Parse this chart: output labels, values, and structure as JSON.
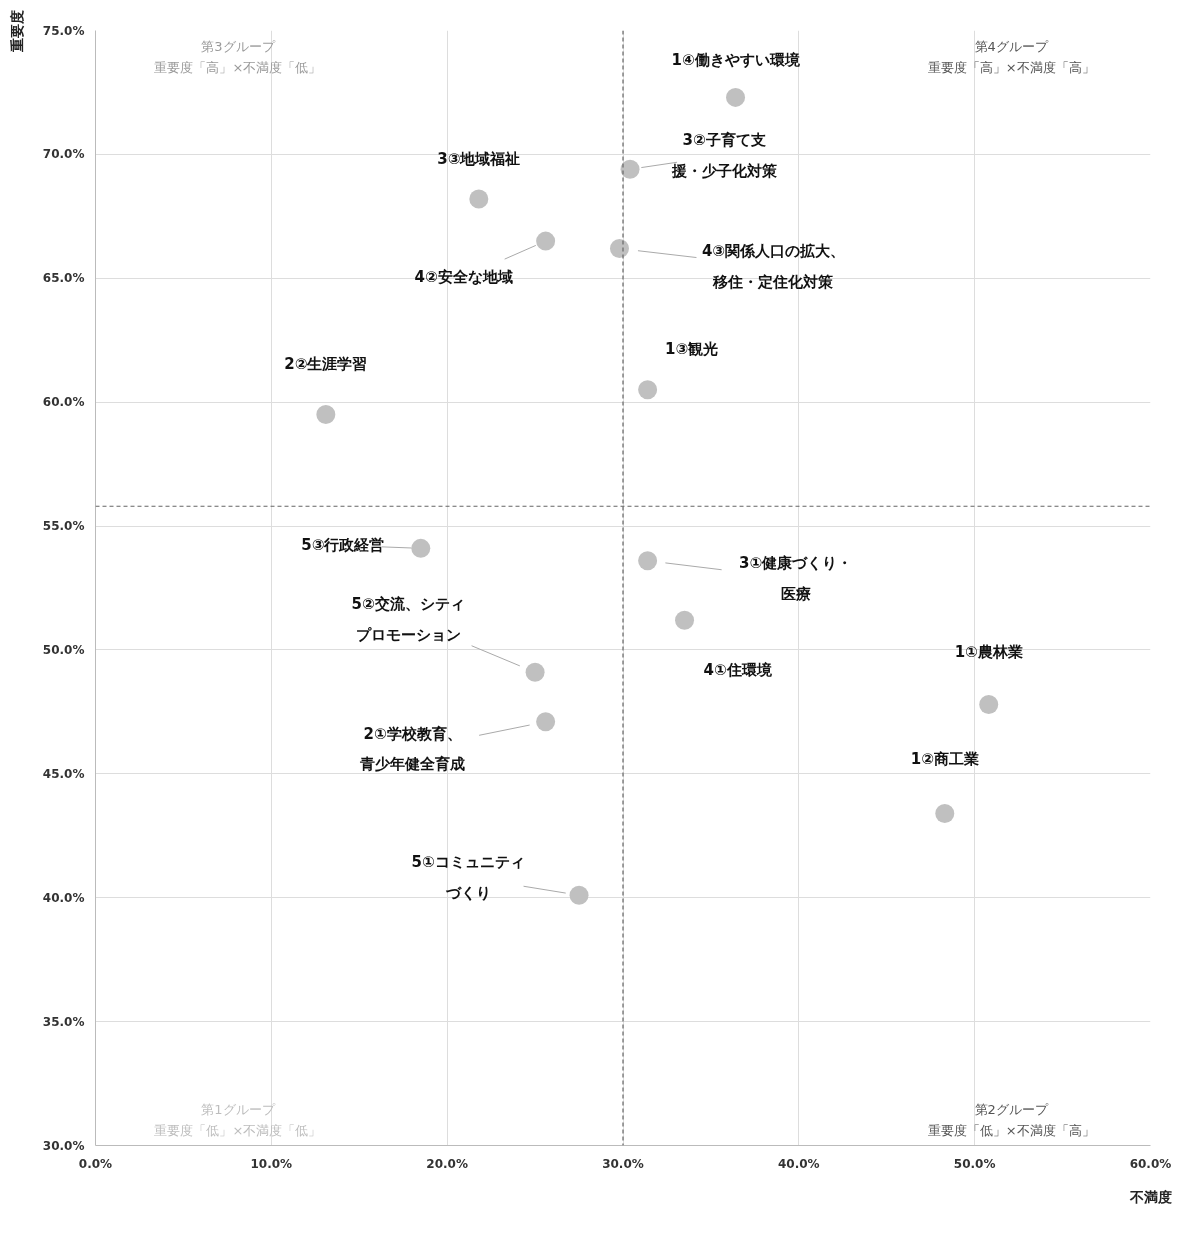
{
  "chart_data": {
    "type": "scatter",
    "xlabel": "不満度",
    "ylabel": "重要度",
    "x": [
      36.4,
      30.4,
      21.8,
      25.6,
      29.8,
      31.4,
      13.1,
      18.5,
      31.4,
      33.5,
      25.0,
      25.6,
      50.8,
      48.3,
      27.5
    ],
    "series": [
      {
        "color": "#c0c0c0",
        "values": [
          72.3,
          69.4,
          68.2,
          66.5,
          66.2,
          60.5,
          59.5,
          54.1,
          53.6,
          51.2,
          49.1,
          47.1,
          47.8,
          43.4,
          40.1
        ]
      }
    ],
    "value_labels": [
      "1④働きやすい環境",
      "3②子育て支援・少子化対策",
      "3③地域福祉",
      "4②安全な地域",
      "4③関係人口の拡大、移住・定住化対策",
      "1③観光",
      "2②生涯学習",
      "5③行政経営",
      "3①健康づくり・医療",
      "4①住環境",
      "5②交流、シティプロモーション",
      "2①学校教育、青少年健全育成",
      "1①農林業",
      "1②商工業",
      "5①コミュニティづくり"
    ],
    "annotations": [
      "第3グループ重要度「高」×不満度「低」",
      "第4グループ重要度「高」×不満度「高」",
      "第1グループ重要度「低」×不満度「低」",
      "第2グループ重要度「低」×不満度「高」"
    ],
    "xlim": [
      0,
      60
    ],
    "xticks": [
      {
        "value": 0,
        "label": "0.0%"
      },
      {
        "value": 10,
        "label": "10.0%"
      },
      {
        "value": 20,
        "label": "20.0%"
      },
      {
        "value": 30,
        "label": "30.0%"
      },
      {
        "value": 40,
        "label": "40.0%"
      },
      {
        "value": 50,
        "label": "50.0%"
      },
      {
        "value": 60,
        "label": "60.0%"
      }
    ],
    "ylim": [
      30,
      75
    ],
    "yticks": [
      {
        "value": 30,
        "label": "30.0%"
      },
      {
        "value": 35,
        "label": "35.0%"
      },
      {
        "value": 40,
        "label": "40.0%"
      },
      {
        "value": 45,
        "label": "45.0%"
      },
      {
        "value": 50,
        "label": "50.0%"
      },
      {
        "value": 55,
        "label": "55.0%"
      },
      {
        "value": 60,
        "label": "60.0%"
      },
      {
        "value": 65,
        "label": "65.0%"
      },
      {
        "value": 70,
        "label": "70.0%"
      },
      {
        "value": 75,
        "label": "75.0%"
      }
    ],
    "ref_lines": [
      {
        "axis": "x",
        "value": 30,
        "color": "#666666",
        "line_style": "dashed"
      },
      {
        "axis": "y",
        "value": 55.8,
        "color": "#666666",
        "line_style": "dashed"
      }
    ],
    "grid": true,
    "marker": "circle"
  }
}
